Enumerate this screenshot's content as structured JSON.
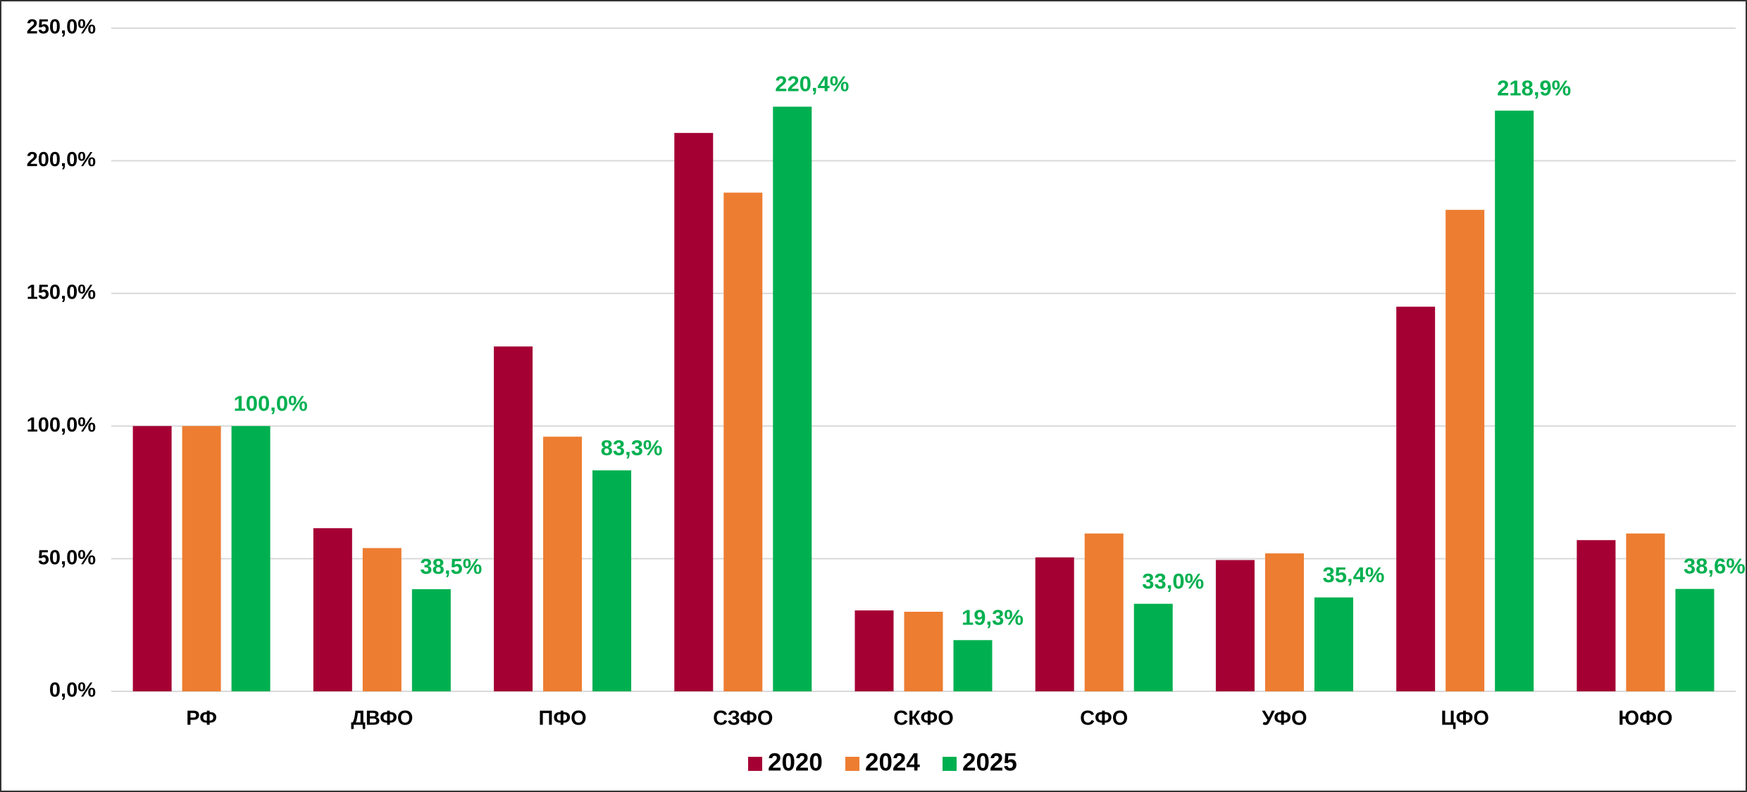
{
  "chart_data": {
    "type": "bar",
    "categories": [
      "РФ",
      "ДВФО",
      "ПФО",
      "СЗФО",
      "СКФО",
      "СФО",
      "УФО",
      "ЦФО",
      "ЮФО"
    ],
    "series": [
      {
        "name": "2020",
        "color": "#a50034",
        "values": [
          100,
          61.5,
          130,
          210.5,
          30.5,
          50.5,
          49.5,
          145,
          57
        ]
      },
      {
        "name": "2024",
        "color": "#ed7d31",
        "values": [
          100,
          54,
          96,
          188,
          30,
          59.5,
          52,
          181.5,
          59.5
        ]
      },
      {
        "name": "2025",
        "color": "#00b050",
        "values": [
          100,
          38.5,
          83.3,
          220.4,
          19.3,
          33.0,
          35.4,
          218.9,
          38.6
        ],
        "value_labels": [
          "100,0%",
          "38,5%",
          "83,3%",
          "220,4%",
          "19,3%",
          "33,0%",
          "35,4%",
          "218,9%",
          "38,6%"
        ]
      }
    ],
    "ylim": [
      0,
      250
    ],
    "yticks": [
      {
        "value": 0,
        "label": "0,0%"
      },
      {
        "value": 50,
        "label": "50,0%"
      },
      {
        "value": 100,
        "label": "100,0%"
      },
      {
        "value": 150,
        "label": "150,0%"
      },
      {
        "value": 200,
        "label": "200,0%"
      },
      {
        "value": 250,
        "label": "250,0%"
      }
    ],
    "grid": true,
    "legend": "bottom"
  }
}
